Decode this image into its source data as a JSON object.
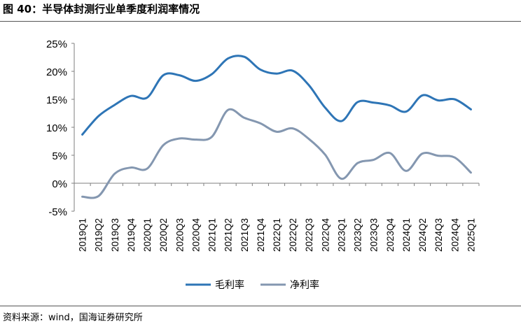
{
  "title": "图 40：半导体封测行业单季度利润率情况",
  "source": "资料来源：wind，国海证券研究所",
  "chart_data": {
    "type": "line",
    "categories": [
      "2019Q1",
      "2019Q2",
      "2019Q3",
      "2019Q4",
      "2020Q1",
      "2020Q2",
      "2020Q3",
      "2020Q4",
      "2021Q1",
      "2021Q2",
      "2021Q3",
      "2021Q4",
      "2022Q1",
      "2022Q2",
      "2022Q3",
      "2022Q4",
      "2023Q1",
      "2023Q2",
      "2023Q3",
      "2023Q4",
      "2024Q1",
      "2024Q2",
      "2024Q3",
      "2024Q4",
      "2025Q1"
    ],
    "series": [
      {
        "name": "毛利率",
        "color": "#2E75B6",
        "values": [
          8.7,
          12.0,
          14.0,
          15.6,
          15.3,
          19.3,
          19.3,
          18.3,
          19.5,
          22.3,
          22.6,
          20.3,
          19.6,
          20.1,
          17.5,
          13.5,
          11.1,
          14.5,
          14.4,
          13.9,
          12.8,
          15.7,
          14.8,
          15.0,
          13.2
        ]
      },
      {
        "name": "净利率",
        "color": "#8497B0",
        "values": [
          -2.4,
          -2.3,
          1.7,
          2.8,
          2.6,
          6.8,
          8.0,
          7.8,
          8.3,
          13.1,
          11.7,
          10.7,
          9.2,
          9.8,
          7.9,
          5.1,
          0.8,
          3.6,
          4.2,
          5.4,
          2.2,
          5.3,
          4.9,
          4.6,
          1.9
        ]
      }
    ],
    "yticks": [
      "25%",
      "20%",
      "15%",
      "10%",
      "5%",
      "0%",
      "-5%"
    ],
    "ylim": [
      -5,
      25
    ],
    "grid": false,
    "legend": "bottom"
  }
}
